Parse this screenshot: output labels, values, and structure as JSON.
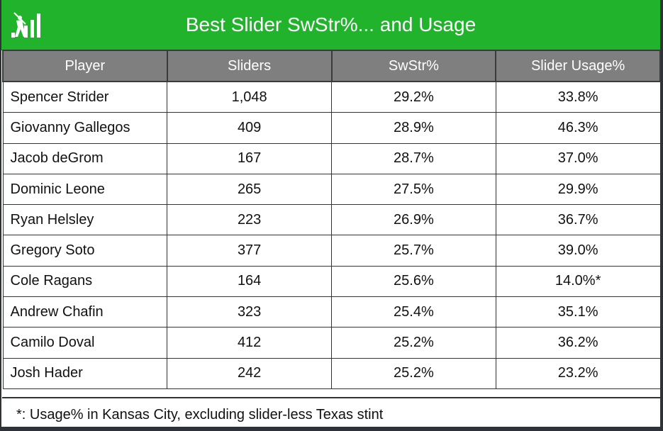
{
  "header": {
    "title": "Best Slider SwStr%... and Usage",
    "brand_color": "#22b32c"
  },
  "table": {
    "columns": [
      "Player",
      "Sliders",
      "SwStr%",
      "Slider Usage%"
    ],
    "rows": [
      [
        "Spencer Strider",
        "1,048",
        "29.2%",
        "33.8%"
      ],
      [
        "Giovanny Gallegos",
        "409",
        "28.9%",
        "46.3%"
      ],
      [
        "Jacob deGrom",
        "167",
        "28.7%",
        "37.0%"
      ],
      [
        "Dominic Leone",
        "265",
        "27.5%",
        "29.9%"
      ],
      [
        "Ryan Helsley",
        "223",
        "26.9%",
        "36.7%"
      ],
      [
        "Gregory Soto",
        "377",
        "25.7%",
        "39.0%"
      ],
      [
        "Cole Ragans",
        "164",
        "25.6%",
        "14.0%*"
      ],
      [
        "Andrew Chafin",
        "323",
        "25.4%",
        "35.1%"
      ],
      [
        "Camilo Doval",
        "412",
        "25.2%",
        "36.2%"
      ],
      [
        "Josh Hader",
        "242",
        "25.2%",
        "23.2%"
      ]
    ]
  },
  "footnote": "*: Usage% in Kansas City, excluding slider-less Texas stint",
  "chart_data": {
    "type": "table",
    "title": "Best Slider SwStr%... and Usage",
    "columns": [
      "Player",
      "Sliders",
      "SwStr%",
      "Slider Usage%"
    ],
    "rows": [
      {
        "Player": "Spencer Strider",
        "Sliders": 1048,
        "SwStr%": 29.2,
        "Slider Usage%": 33.8
      },
      {
        "Player": "Giovanny Gallegos",
        "Sliders": 409,
        "SwStr%": 28.9,
        "Slider Usage%": 46.3
      },
      {
        "Player": "Jacob deGrom",
        "Sliders": 167,
        "SwStr%": 28.7,
        "Slider Usage%": 37.0
      },
      {
        "Player": "Dominic Leone",
        "Sliders": 265,
        "SwStr%": 27.5,
        "Slider Usage%": 29.9
      },
      {
        "Player": "Ryan Helsley",
        "Sliders": 223,
        "SwStr%": 26.9,
        "Slider Usage%": 36.7
      },
      {
        "Player": "Gregory Soto",
        "Sliders": 377,
        "SwStr%": 25.7,
        "Slider Usage%": 39.0
      },
      {
        "Player": "Cole Ragans",
        "Sliders": 164,
        "SwStr%": 25.6,
        "Slider Usage%": 14.0
      },
      {
        "Player": "Andrew Chafin",
        "Sliders": 323,
        "SwStr%": 25.4,
        "Slider Usage%": 35.1
      },
      {
        "Player": "Camilo Doval",
        "Sliders": 412,
        "SwStr%": 25.2,
        "Slider Usage%": 36.2
      },
      {
        "Player": "Josh Hader",
        "Sliders": 242,
        "SwStr%": 25.2,
        "Slider Usage%": 23.2
      }
    ]
  }
}
